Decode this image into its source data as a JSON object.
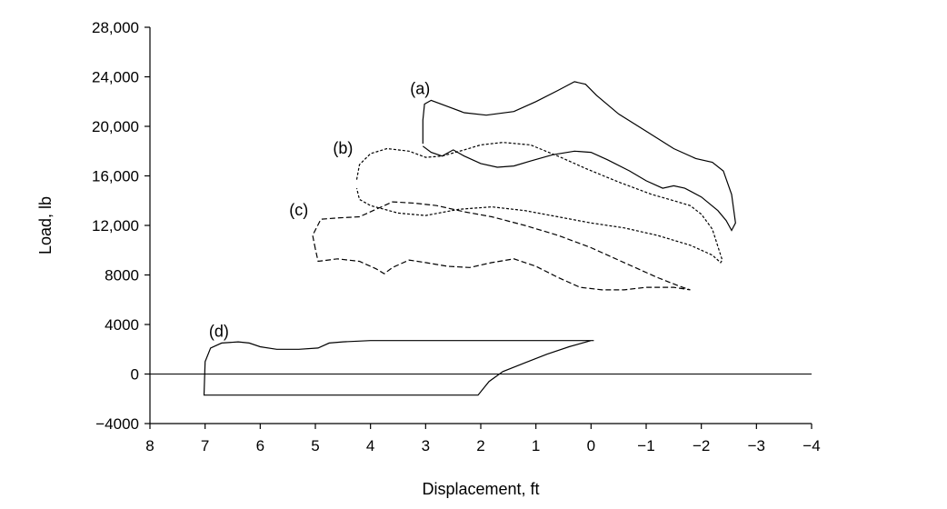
{
  "chart_data": {
    "type": "line",
    "title": "",
    "xlabel": "Displacement,  ft",
    "ylabel": "Load, lb",
    "xlim": [
      8,
      -4
    ],
    "ylim": [
      -4000,
      28000
    ],
    "x_reversed": true,
    "x_ticks": [
      8,
      7,
      6,
      5,
      4,
      3,
      2,
      1,
      0,
      -1,
      -2,
      -3,
      -4
    ],
    "x_tick_labels": [
      "8",
      "7",
      "6",
      "5",
      "4",
      "3",
      "2",
      "1",
      "0",
      "−1",
      "−2",
      "−3",
      "−4"
    ],
    "y_ticks": [
      -4000,
      0,
      4000,
      8000,
      12000,
      16000,
      20000,
      24000,
      28000
    ],
    "y_tick_labels": [
      "−4000",
      "0",
      "4000",
      "8000",
      "12,000",
      "16,000",
      "20,000",
      "24,000",
      "28,000"
    ],
    "zero_line": true,
    "grid": false,
    "line_color": "#000000",
    "series": [
      {
        "label": "(a)",
        "label_at": [
          3.1,
          22600
        ],
        "dash": "solid",
        "closed": false,
        "points": [
          [
            3.05,
            18600
          ],
          [
            3.05,
            20500
          ],
          [
            3.02,
            21800
          ],
          [
            2.9,
            22100
          ],
          [
            2.6,
            21600
          ],
          [
            2.3,
            21100
          ],
          [
            1.9,
            20900
          ],
          [
            1.4,
            21200
          ],
          [
            1.0,
            22000
          ],
          [
            0.6,
            22900
          ],
          [
            0.3,
            23600
          ],
          [
            0.1,
            23400
          ],
          [
            -0.1,
            22500
          ],
          [
            -0.5,
            21000
          ],
          [
            -1.0,
            19600
          ],
          [
            -1.5,
            18200
          ],
          [
            -1.9,
            17400
          ],
          [
            -2.2,
            17100
          ],
          [
            -2.4,
            16400
          ],
          [
            -2.55,
            14500
          ],
          [
            -2.62,
            12200
          ],
          [
            -2.55,
            11600
          ],
          [
            -2.45,
            12400
          ],
          [
            -2.3,
            13200
          ],
          [
            -2.0,
            14300
          ],
          [
            -1.7,
            15000
          ],
          [
            -1.5,
            15200
          ],
          [
            -1.3,
            15000
          ],
          [
            -1.0,
            15600
          ],
          [
            -0.7,
            16400
          ],
          [
            -0.3,
            17300
          ],
          [
            0.0,
            17900
          ],
          [
            0.3,
            18000
          ],
          [
            0.7,
            17700
          ],
          [
            1.1,
            17200
          ],
          [
            1.4,
            16800
          ],
          [
            1.7,
            16700
          ],
          [
            2.0,
            17000
          ],
          [
            2.3,
            17600
          ],
          [
            2.5,
            18100
          ],
          [
            2.58,
            17900
          ],
          [
            2.7,
            17600
          ],
          [
            2.9,
            17900
          ],
          [
            3.05,
            18400
          ]
        ]
      },
      {
        "label": "(b)",
        "label_at": [
          4.5,
          17800
        ],
        "dash": "dashed-fine",
        "closed": false,
        "points": [
          [
            4.25,
            15700
          ],
          [
            4.2,
            16900
          ],
          [
            4.0,
            17800
          ],
          [
            3.7,
            18200
          ],
          [
            3.3,
            18000
          ],
          [
            3.0,
            17500
          ],
          [
            2.7,
            17600
          ],
          [
            2.3,
            18100
          ],
          [
            2.0,
            18500
          ],
          [
            1.6,
            18700
          ],
          [
            1.1,
            18500
          ],
          [
            0.6,
            17600
          ],
          [
            0.1,
            16600
          ],
          [
            -0.5,
            15500
          ],
          [
            -1.1,
            14500
          ],
          [
            -1.5,
            14000
          ],
          [
            -1.8,
            13600
          ],
          [
            -2.0,
            12900
          ],
          [
            -2.2,
            11700
          ],
          [
            -2.3,
            10300
          ],
          [
            -2.38,
            9200
          ],
          [
            -2.35,
            9000
          ],
          [
            -2.2,
            9600
          ],
          [
            -1.8,
            10400
          ],
          [
            -1.2,
            11200
          ],
          [
            -0.6,
            11800
          ],
          [
            0.0,
            12200
          ],
          [
            0.6,
            12700
          ],
          [
            1.2,
            13200
          ],
          [
            1.8,
            13500
          ],
          [
            2.4,
            13300
          ],
          [
            3.0,
            12800
          ],
          [
            3.5,
            13000
          ],
          [
            4.0,
            13600
          ],
          [
            4.2,
            14100
          ],
          [
            4.25,
            15000
          ]
        ]
      },
      {
        "label": "(c)",
        "label_at": [
          5.3,
          12800
        ],
        "dash": "dashed",
        "closed": false,
        "points": [
          [
            5.0,
            10100
          ],
          [
            5.05,
            11200
          ],
          [
            4.9,
            12500
          ],
          [
            4.6,
            12600
          ],
          [
            4.2,
            12700
          ],
          [
            3.9,
            13300
          ],
          [
            3.6,
            13900
          ],
          [
            3.2,
            13800
          ],
          [
            2.8,
            13600
          ],
          [
            2.3,
            13100
          ],
          [
            1.8,
            12700
          ],
          [
            1.2,
            12000
          ],
          [
            0.6,
            11200
          ],
          [
            0.0,
            10200
          ],
          [
            -0.6,
            9000
          ],
          [
            -1.2,
            7800
          ],
          [
            -1.6,
            7100
          ],
          [
            -1.8,
            6800
          ],
          [
            -1.5,
            7000
          ],
          [
            -1.0,
            7000
          ],
          [
            -0.6,
            6800
          ],
          [
            -0.2,
            6800
          ],
          [
            0.2,
            7000
          ],
          [
            0.6,
            7800
          ],
          [
            1.0,
            8700
          ],
          [
            1.4,
            9300
          ],
          [
            1.8,
            9000
          ],
          [
            2.2,
            8600
          ],
          [
            2.6,
            8700
          ],
          [
            3.0,
            9000
          ],
          [
            3.3,
            9200
          ],
          [
            3.6,
            8600
          ],
          [
            3.75,
            8100
          ],
          [
            3.9,
            8500
          ],
          [
            4.2,
            9100
          ],
          [
            4.6,
            9300
          ],
          [
            4.95,
            9100
          ],
          [
            5.0,
            10100
          ]
        ]
      },
      {
        "label": "(d)",
        "label_at": [
          6.75,
          3000
        ],
        "dash": "solid",
        "closed": false,
        "points": [
          [
            -0.05,
            2700
          ],
          [
            0.5,
            2700
          ],
          [
            1.0,
            2700
          ],
          [
            2.0,
            2700
          ],
          [
            3.0,
            2700
          ],
          [
            4.0,
            2700
          ],
          [
            4.5,
            2600
          ],
          [
            4.75,
            2500
          ],
          [
            4.95,
            2100
          ],
          [
            5.3,
            2000
          ],
          [
            5.7,
            2000
          ],
          [
            6.0,
            2200
          ],
          [
            6.2,
            2500
          ],
          [
            6.4,
            2600
          ],
          [
            6.7,
            2500
          ],
          [
            6.9,
            2100
          ],
          [
            7.0,
            1000
          ],
          [
            7.02,
            -1700
          ],
          [
            6.0,
            -1700
          ],
          [
            5.0,
            -1700
          ],
          [
            4.0,
            -1700
          ],
          [
            3.0,
            -1700
          ],
          [
            2.05,
            -1700
          ],
          [
            1.85,
            -600
          ],
          [
            1.6,
            200
          ],
          [
            1.2,
            900
          ],
          [
            0.8,
            1600
          ],
          [
            0.4,
            2200
          ],
          [
            0.0,
            2700
          ],
          [
            -0.05,
            2700
          ]
        ]
      }
    ]
  }
}
